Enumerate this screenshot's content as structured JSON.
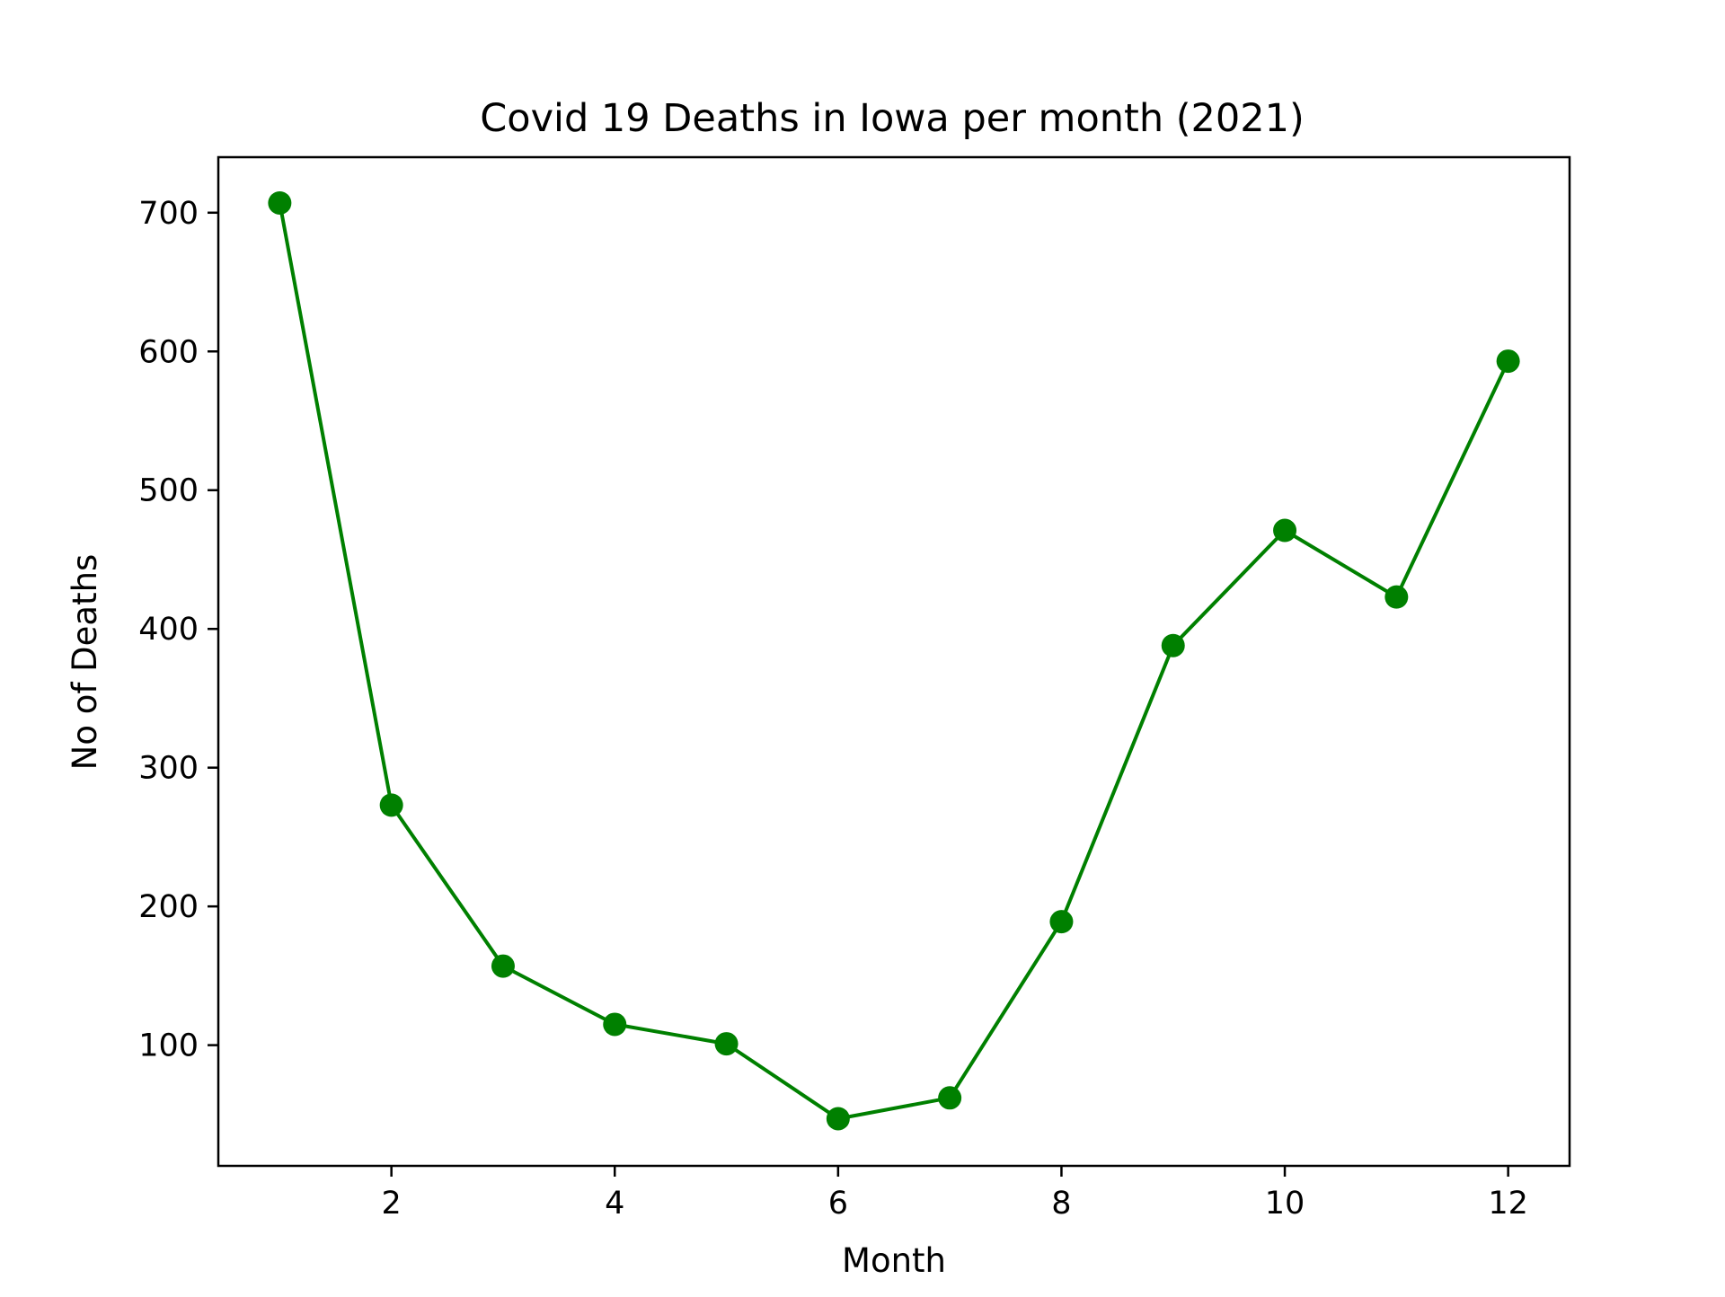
{
  "chart_data": {
    "type": "line",
    "title": "Covid 19 Deaths in Iowa per month (2021)",
    "xlabel": "Month",
    "ylabel": "No of Deaths",
    "xlim": [
      0.45,
      12.55
    ],
    "ylim": [
      13,
      740
    ],
    "xticks": [
      2,
      4,
      6,
      8,
      10,
      12
    ],
    "yticks": [
      100,
      200,
      300,
      400,
      500,
      600,
      700
    ],
    "grid": false,
    "series": [
      {
        "color": "#008000",
        "marker": "circle",
        "x": [
          1,
          2,
          3,
          4,
          5,
          6,
          7,
          8,
          9,
          10,
          11,
          12
        ],
        "y": [
          707,
          273,
          157,
          115,
          101,
          47,
          62,
          189,
          388,
          471,
          423,
          593
        ]
      }
    ]
  }
}
